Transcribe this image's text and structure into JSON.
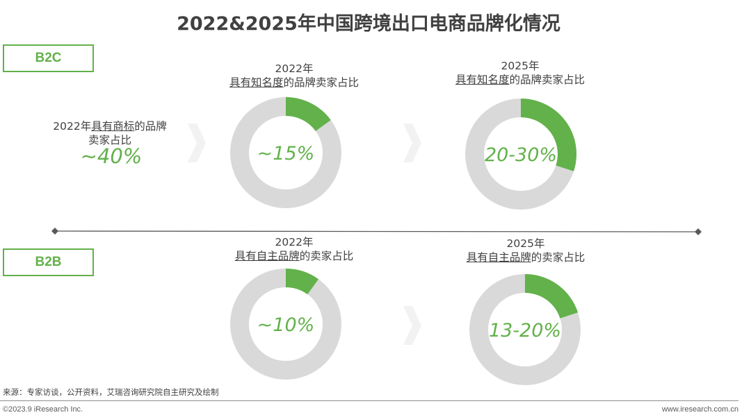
{
  "title": "2022&2025年中国跨境出口电商品牌化情况",
  "segments": {
    "b2c": "B2C",
    "b2b": "B2B"
  },
  "b2c_trademark": {
    "line1_prefix": "2022年",
    "line1_underlined": "具有商标",
    "line1_suffix": "的品牌",
    "line2": "卖家占比",
    "value": "~40%"
  },
  "captions": {
    "b2c_2022": {
      "year": "2022年",
      "underlined": "具有知名度",
      "suffix": "的品牌卖家占比"
    },
    "b2c_2025": {
      "year": "2025年",
      "underlined": "具有知名度",
      "suffix": "的品牌卖家占比"
    },
    "b2b_2022": {
      "year": "2022年",
      "underlined": "具有自主品牌",
      "suffix": "的卖家占比"
    },
    "b2b_2025": {
      "year": "2025年",
      "underlined": "具有自主品牌",
      "suffix": "的卖家占比"
    }
  },
  "chart_data": [
    {
      "type": "pie",
      "id": "b2c_2022",
      "value": 15,
      "label": "~15%"
    },
    {
      "type": "pie",
      "id": "b2c_2025",
      "value": 30,
      "label": "20-30%"
    },
    {
      "type": "pie",
      "id": "b2b_2022",
      "value": 10,
      "label": "~10%"
    },
    {
      "type": "pie",
      "id": "b2b_2025",
      "value": 20,
      "label": "13-20%"
    }
  ],
  "colors": {
    "accent": "#62b14a",
    "ring": "#d9d9d9",
    "chevron": "#f2f2f2",
    "divider": "#595959"
  },
  "source": "来源：专家访谈，公开资料，艾瑞咨询研究院自主研究及绘制",
  "footer": {
    "left": "©2023.9 iResearch Inc.",
    "right": "www.iresearch.com.cn"
  }
}
